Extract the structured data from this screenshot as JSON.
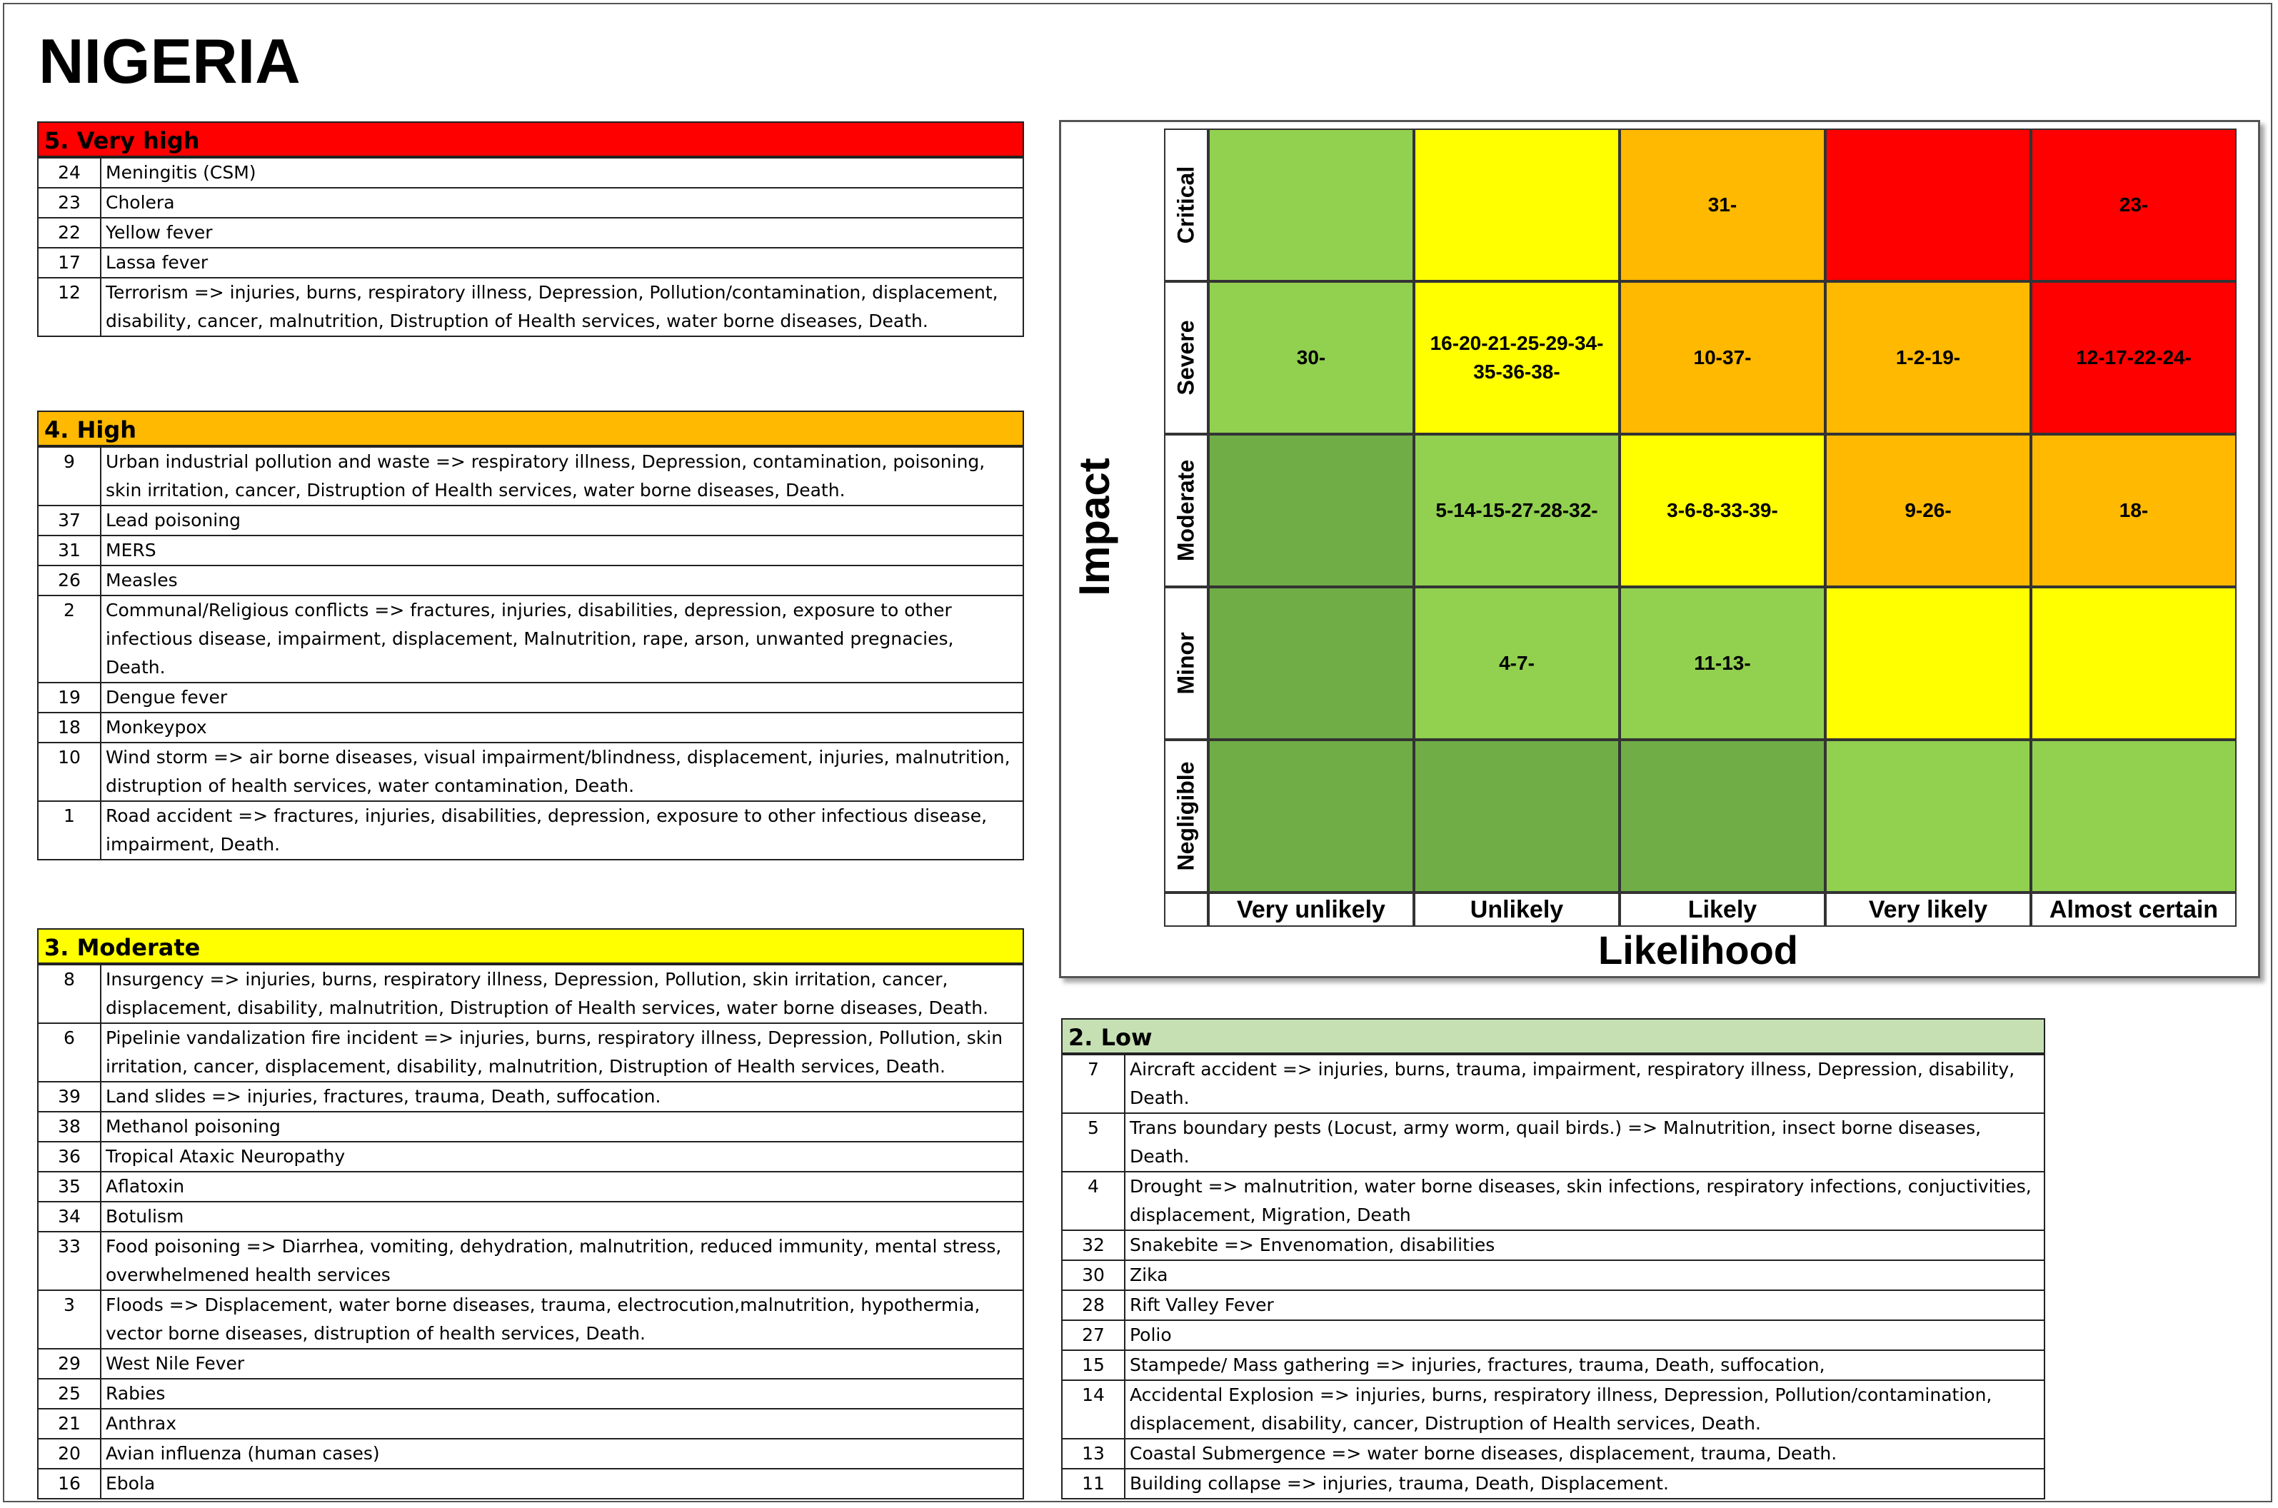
{
  "title": "NIGERIA",
  "colors": {
    "very_high": "#ff0000",
    "high": "#ffb900",
    "moderate": "#ffff00",
    "low": "#c6e0b4",
    "light_green": "#92d050",
    "dark_green": "#70ad47"
  },
  "sections": {
    "very_high": {
      "heading": "5. Very high",
      "rows": [
        {
          "num": "24",
          "text": "Meningitis (CSM)"
        },
        {
          "num": "23",
          "text": "Cholera"
        },
        {
          "num": "22",
          "text": "Yellow fever"
        },
        {
          "num": "17",
          "text": "Lassa fever"
        },
        {
          "num": "12",
          "text": "Terrorism => injuries, burns, respiratory illness, Depression, Pollution/contamination, displacement, disability, cancer, malnutrition, Distruption of Health services, water borne diseases, Death."
        }
      ]
    },
    "high": {
      "heading": "4. High",
      "rows": [
        {
          "num": "9",
          "text": "Urban industrial pollution and waste => respiratory illness, Depression, contamination, poisoning, skin irritation, cancer,   Distruption of Health services, water borne diseases, Death."
        },
        {
          "num": "37",
          "text": "Lead poisoning"
        },
        {
          "num": "31",
          "text": "MERS"
        },
        {
          "num": "26",
          "text": "Measles"
        },
        {
          "num": "2",
          "text": "Communal/Religious conflicts => fractures, injuries, disabilities, depression,  exposure to other infectious disease, impairment, displacement, Malnutrition, rape, arson, unwanted pregnacies, Death."
        },
        {
          "num": "19",
          "text": "Dengue fever"
        },
        {
          "num": "18",
          "text": "Monkeypox"
        },
        {
          "num": "10",
          "text": "Wind storm => air borne diseases, visual impairment/blindness, displacement, injuries, malnutrition, distruption of health services, water contamination, Death."
        },
        {
          "num": "1",
          "text": "Road accident => fractures, injuries, disabilities, depression, exposure to other infectious disease, impairment, Death."
        }
      ]
    },
    "moderate": {
      "heading": "3. Moderate",
      "rows": [
        {
          "num": "8",
          "text": "Insurgency => injuries, burns, respiratory illness, Depression, Pollution, skin irritation, cancer, displacement, disability, malnutrition, Distruption of Health services, water borne diseases, Death."
        },
        {
          "num": "6",
          "text": "Pipelinie vandalization fire incident => injuries, burns, respiratory illness, Depression, Pollution, skin irritation, cancer, displacement, disability, malnutrition, Distruption of Health services, Death."
        },
        {
          "num": "39",
          "text": "Land slides => injuries, fractures, trauma, Death, suffocation."
        },
        {
          "num": "38",
          "text": "Methanol poisoning"
        },
        {
          "num": "36",
          "text": "Tropical Ataxic Neuropathy"
        },
        {
          "num": "35",
          "text": "Aflatoxin"
        },
        {
          "num": "34",
          "text": "Botulism"
        },
        {
          "num": "33",
          "text": "Food poisoning => Diarrhea, vomiting, dehydration, malnutrition, reduced immunity, mental stress, overwhelmened health services"
        },
        {
          "num": "3",
          "text": "Floods => Displacement, water borne diseases, trauma, electrocution,malnutrition, hypothermia, vector borne diseases, distruption of health services, Death."
        },
        {
          "num": "29",
          "text": "West Nile Fever"
        },
        {
          "num": "25",
          "text": "Rabies"
        },
        {
          "num": "21",
          "text": "Anthrax"
        },
        {
          "num": "20",
          "text": "Avian influenza (human cases)"
        },
        {
          "num": "16",
          "text": "Ebola"
        }
      ]
    },
    "low": {
      "heading": "2. Low",
      "rows": [
        {
          "num": "7",
          "text": "Aircraft accident => injuries, burns, trauma, impairment, respiratory illness, Depression, disability, Death."
        },
        {
          "num": "5",
          "text": "Trans boundary pests (Locust, army worm, quail birds.) => Malnutrition, insect borne diseases, Death."
        },
        {
          "num": "4",
          "text": "Drought => malnutrition, water borne diseases, skin infections, respiratory infections, conjuctivities, displacement, Migration, Death"
        },
        {
          "num": "32",
          "text": "Snakebite => Envenomation, disabilities"
        },
        {
          "num": "30",
          "text": "Zika"
        },
        {
          "num": "28",
          "text": "Rift Valley Fever"
        },
        {
          "num": "27",
          "text": "Polio"
        },
        {
          "num": "15",
          "text": "Stampede/ Mass gathering => injuries, fractures, trauma, Death, suffocation,"
        },
        {
          "num": "14",
          "text": "Accidental Explosion => injuries, burns, respiratory illness, Depression, Pollution/contamination, displacement, disability, cancer, Distruption of Health services,  Death."
        },
        {
          "num": "13",
          "text": "Coastal Submergence => water borne diseases, displacement, trauma, Death."
        },
        {
          "num": "11",
          "text": "Building collapse => injuries, trauma, Death, Displacement."
        }
      ]
    }
  },
  "matrix": {
    "y_title": "Impact",
    "x_title": "Likelihood",
    "impact_levels": [
      "Critical",
      "Severe",
      "Moderate",
      "Minor",
      "Negligible"
    ],
    "likelihood_levels": [
      "Very unlikely",
      "Unlikely",
      "Likely",
      "Very likely",
      "Almost certain"
    ],
    "cells": [
      [
        {
          "color": "#92d050",
          "text": ""
        },
        {
          "color": "#ffff00",
          "text": ""
        },
        {
          "color": "#ffb900",
          "text": "31-"
        },
        {
          "color": "#ff0000",
          "text": ""
        },
        {
          "color": "#ff0000",
          "text": "23-"
        }
      ],
      [
        {
          "color": "#92d050",
          "text": "30-"
        },
        {
          "color": "#ffff00",
          "text": "16-20-21-25-29-34-35-36-38-"
        },
        {
          "color": "#ffb900",
          "text": "10-37-"
        },
        {
          "color": "#ffb900",
          "text": "1-2-19-"
        },
        {
          "color": "#ff0000",
          "text": "12-17-22-24-"
        }
      ],
      [
        {
          "color": "#70ad47",
          "text": ""
        },
        {
          "color": "#92d050",
          "text": "5-14-15-27-28-32-"
        },
        {
          "color": "#ffff00",
          "text": "3-6-8-33-39-"
        },
        {
          "color": "#ffb900",
          "text": "9-26-"
        },
        {
          "color": "#ffb900",
          "text": "18-"
        }
      ],
      [
        {
          "color": "#70ad47",
          "text": ""
        },
        {
          "color": "#92d050",
          "text": "4-7-"
        },
        {
          "color": "#92d050",
          "text": "11-13-"
        },
        {
          "color": "#ffff00",
          "text": ""
        },
        {
          "color": "#ffff00",
          "text": ""
        }
      ],
      [
        {
          "color": "#70ad47",
          "text": ""
        },
        {
          "color": "#70ad47",
          "text": ""
        },
        {
          "color": "#70ad47",
          "text": ""
        },
        {
          "color": "#92d050",
          "text": ""
        },
        {
          "color": "#92d050",
          "text": ""
        }
      ]
    ]
  }
}
